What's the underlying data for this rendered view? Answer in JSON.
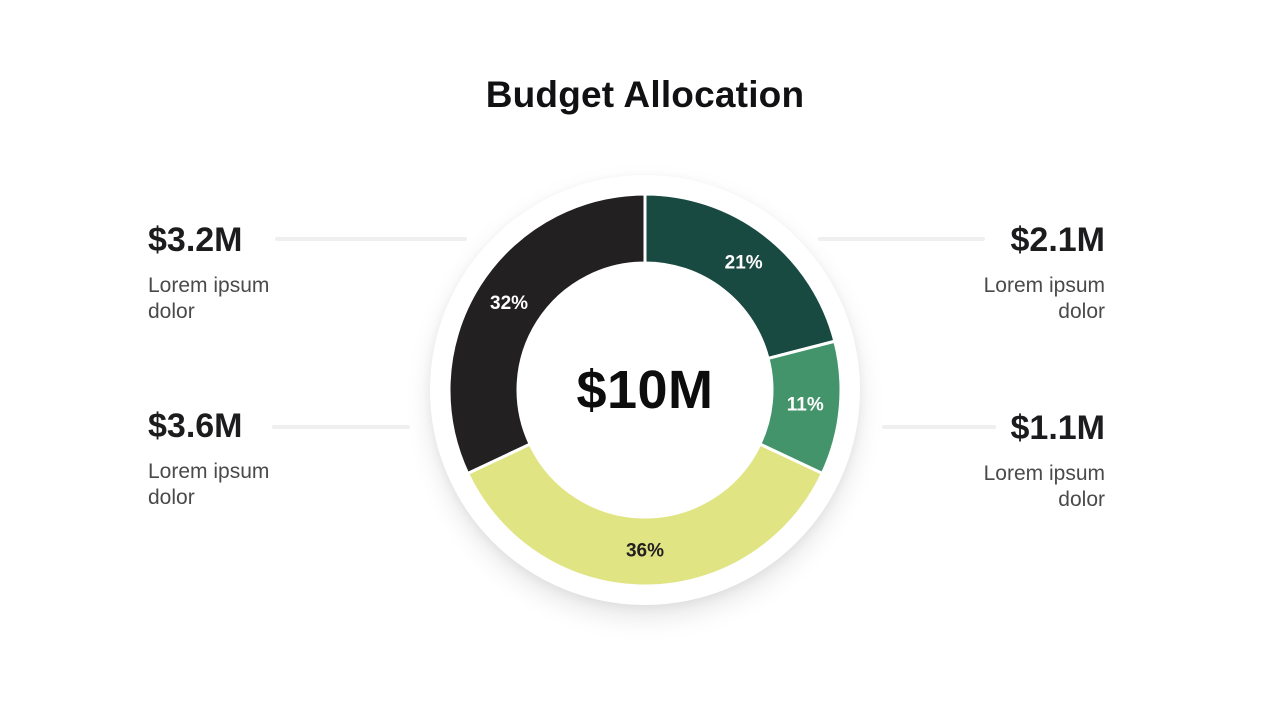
{
  "page": {
    "title": "Budget Allocation",
    "background_color": "#FFFFFF"
  },
  "chart_data": {
    "type": "pie",
    "variant": "donut",
    "title": "Budget Allocation",
    "center_label": "$10M",
    "total_value": "$10M",
    "start_angle": "top",
    "direction": "clockwise",
    "legend_position": "none",
    "segments": [
      {
        "percent": 21,
        "label": "21%",
        "amount": "$2.1M",
        "color": "#194A42",
        "label_color": "#FFFFFF"
      },
      {
        "percent": 11,
        "label": "11%",
        "amount": "$1.1M",
        "color": "#44946B",
        "label_color": "#FFFFFF"
      },
      {
        "percent": 36,
        "label": "36%",
        "amount": "$3.6M",
        "color": "#E1E483",
        "label_color": "#232021"
      },
      {
        "percent": 32,
        "label": "32%",
        "amount": "$3.2M",
        "color": "#232021",
        "label_color": "#FFFFFF"
      }
    ]
  },
  "callouts": {
    "left_top": {
      "value": "$3.2M",
      "description": "Lorem ipsum dolor"
    },
    "left_bottom": {
      "value": "$3.6M",
      "description": "Lorem ipsum dolor"
    },
    "right_top": {
      "value": "$2.1M",
      "description": "Lorem ipsum dolor"
    },
    "right_bottom": {
      "value": "$1.1M",
      "description": "Lorem ipsum dolor"
    }
  },
  "colors": {
    "connector_line": "#EFEFEF",
    "value_text": "#1C1C1E",
    "description_text": "#4A4A4A",
    "title_text": "#111113"
  }
}
